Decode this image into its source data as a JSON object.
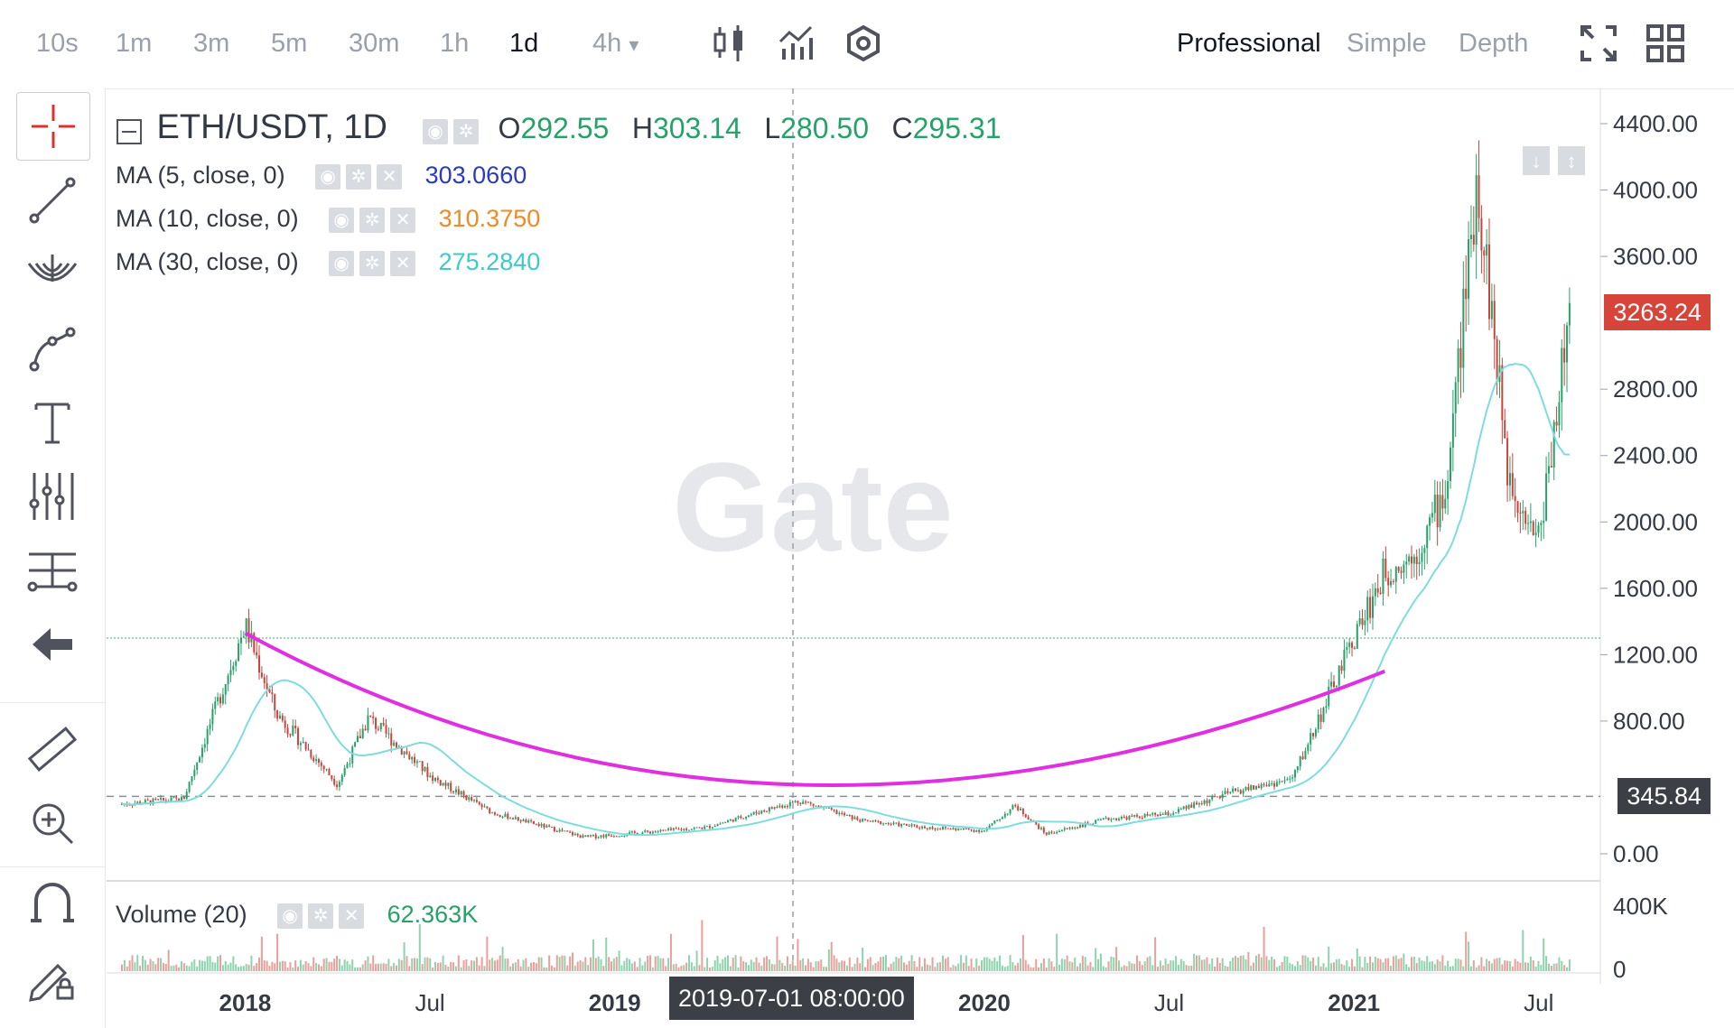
{
  "toolbar": {
    "timeframes": [
      "10s",
      "1m",
      "3m",
      "5m",
      "30m",
      "1h",
      "1d",
      "4h"
    ],
    "active_timeframe": "1d",
    "dropdown_suffix": "▾",
    "modes": [
      "Professional",
      "Simple",
      "Depth"
    ],
    "active_mode": "Professional",
    "icons": [
      "candlestick-icon",
      "indicators-icon",
      "settings-icon",
      "fullscreen-icon",
      "layout-grid-icon"
    ]
  },
  "sidebar": {
    "tools": [
      "crosshair-icon",
      "trend-line-icon",
      "fib-fan-icon",
      "path-icon",
      "text-icon",
      "pitchfork-icon",
      "measure-lines-icon",
      "back-arrow-icon",
      "ruler-icon",
      "zoom-in-icon",
      "magnet-icon",
      "lock-drawing-icon"
    ]
  },
  "legend": {
    "symbol": "ETH/USDT, 1D",
    "open_label": "O",
    "open": "292.55",
    "high_label": "H",
    "high": "303.14",
    "low_label": "L",
    "low": "280.50",
    "close_label": "C",
    "close": "295.31",
    "ma": [
      {
        "label": "MA (5, close, 0)",
        "value": "303.0660",
        "color": "#2a3bbf"
      },
      {
        "label": "MA (10, close, 0)",
        "value": "310.3750",
        "color": "#ef8a24"
      },
      {
        "label": "MA (30, close, 0)",
        "value": "275.2840",
        "color": "#3fc9c9"
      }
    ],
    "volume": {
      "label": "Volume (20)",
      "value": "62.363K"
    }
  },
  "watermark": "Gate",
  "price_boxes": {
    "last": "3263.24",
    "last_color": "#d6443a",
    "horizontal": "345.84",
    "horizontal_color": "#3c3f45"
  },
  "crosshair_date": "2019-07-01 08:00:00",
  "chart_data": {
    "type": "line",
    "series": [
      {
        "x": [
          "2017-09",
          "2017-11",
          "2018-01",
          "2018-02",
          "2018-04",
          "2018-05",
          "2018-07",
          "2018-09",
          "2018-12",
          "2019-02",
          "2019-04",
          "2019-06",
          "2019-07",
          "2019-09",
          "2019-11",
          "2020-01",
          "2020-02",
          "2020-03",
          "2020-05",
          "2020-07",
          "2020-09",
          "2020-11",
          "2021-01",
          "2021-02",
          "2021-03",
          "2021-04",
          "2021-05",
          "2021-06",
          "2021-07",
          "2021-08"
        ],
        "y": [
          300,
          330,
          1380,
          850,
          420,
          820,
          470,
          250,
          100,
          130,
          160,
          270,
          320,
          200,
          160,
          140,
          290,
          120,
          210,
          240,
          370,
          450,
          1300,
          1700,
          1800,
          2200,
          4100,
          2300,
          1900,
          3263
        ]
      }
    ],
    "volume_axis": {
      "labels": [
        "400K",
        "0"
      ]
    },
    "price_axis": {
      "labels": [
        "4400.00",
        "4000.00",
        "3600.00",
        "2800.00",
        "2400.00",
        "2000.00",
        "1600.00",
        "1200.00",
        "800.00",
        "0.00"
      ],
      "ylim": [
        0,
        4400
      ]
    },
    "x_axis": {
      "labels": [
        "2018",
        "Jul",
        "2019",
        "2020",
        "Jul",
        "2021",
        "Jul"
      ]
    },
    "annotations": {
      "arc_color": "#e02ee0",
      "h_line_price": 1300,
      "h_dashed_price": 345.84
    }
  }
}
